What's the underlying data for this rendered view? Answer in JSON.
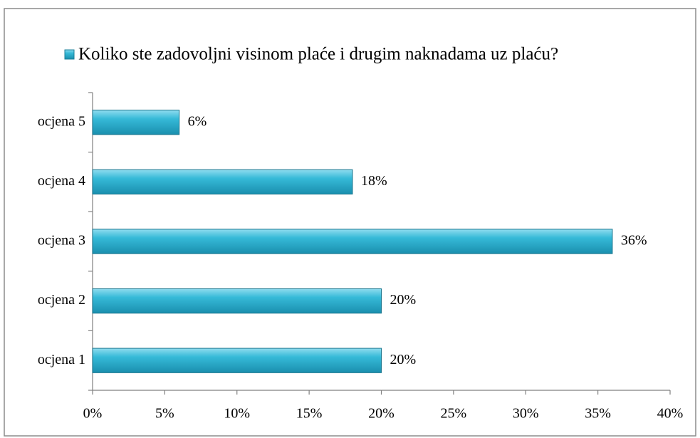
{
  "chart_data": {
    "type": "bar",
    "orientation": "horizontal",
    "categories": [
      "ocjena 1",
      "ocjena 2",
      "ocjena 3",
      "ocjena 4",
      "ocjena 5"
    ],
    "series": [
      {
        "name": "Koliko ste zadovoljni visinom plaće i drugim naknadama uz plaću?",
        "color": "#2ab3d3",
        "values": [
          20,
          20,
          36,
          18,
          6
        ],
        "value_labels": [
          "20%",
          "20%",
          "36%",
          "18%",
          "6%"
        ]
      }
    ],
    "xlim": [
      0,
      40
    ],
    "xticks": [
      {
        "value": 0,
        "label": "0%"
      },
      {
        "value": 5,
        "label": "5%"
      },
      {
        "value": 10,
        "label": "10%"
      },
      {
        "value": 15,
        "label": "15%"
      },
      {
        "value": 20,
        "label": "20%"
      },
      {
        "value": 25,
        "label": "25%"
      },
      {
        "value": 30,
        "label": "30%"
      },
      {
        "value": 35,
        "label": "35%"
      },
      {
        "value": 40,
        "label": "40%"
      }
    ],
    "legend": "top",
    "grid": false
  }
}
